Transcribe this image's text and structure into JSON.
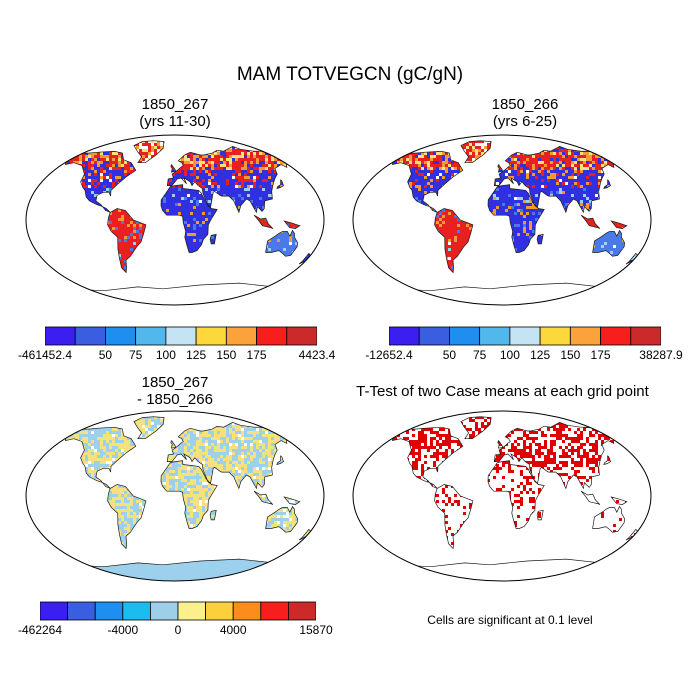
{
  "title": "MAM TOTVEGCN (gC/gN)",
  "panels": [
    {
      "title_line1": "1850_267",
      "title_line2": "(yrs 11-30)",
      "fill": "abs1"
    },
    {
      "title_line1": "1850_266",
      "title_line2": "(yrs 6-25)",
      "fill": "abs2"
    },
    {
      "title_line1": "1850_267",
      "title_line2": "- 1850_266",
      "fill": "diff"
    },
    {
      "title_line1": "T-Test of two Case means at each grid point",
      "title_line2": "",
      "fill": "ttest"
    }
  ],
  "colorbars": [
    {
      "colors": [
        "#3a1ff0",
        "#3a5ee0",
        "#1e8ef0",
        "#52b8ec",
        "#c4e4f4",
        "#fcd83a",
        "#fca23a",
        "#f81e1e",
        "#cc2a2a"
      ],
      "labels": [
        "-461452.4",
        "50",
        "75",
        "100",
        "125",
        "150",
        "175",
        "4423.4"
      ]
    },
    {
      "colors": [
        "#3a1ff0",
        "#3a5ee0",
        "#1e8ef0",
        "#52b8ec",
        "#c4e4f4",
        "#fcd83a",
        "#fca23a",
        "#f81e1e",
        "#cc2a2a"
      ],
      "labels": [
        "-12652.4",
        "50",
        "75",
        "100",
        "125",
        "150",
        "175",
        "38287.9"
      ]
    },
    {
      "colors": [
        "#3a1ff0",
        "#3a5ee0",
        "#1e8ef0",
        "#1cbcf0",
        "#9dcfe8",
        "#fcf08e",
        "#fcd03a",
        "#fc8c1c",
        "#f81e1e",
        "#cc2a2a"
      ],
      "labels": [
        "-462264",
        "-4000",
        "0",
        "4000",
        "15870"
      ]
    }
  ],
  "note": "Cells are significant at 0.1 level",
  "palette": {
    "deep_blue": "#3030e0",
    "blue": "#4a7ae8",
    "light_blue": "#9cd0ec",
    "yellow": "#f6e27c",
    "orange": "#f49a30",
    "red": "#e82020",
    "dark_red": "#c01818",
    "ttest_red": "#e00000"
  }
}
